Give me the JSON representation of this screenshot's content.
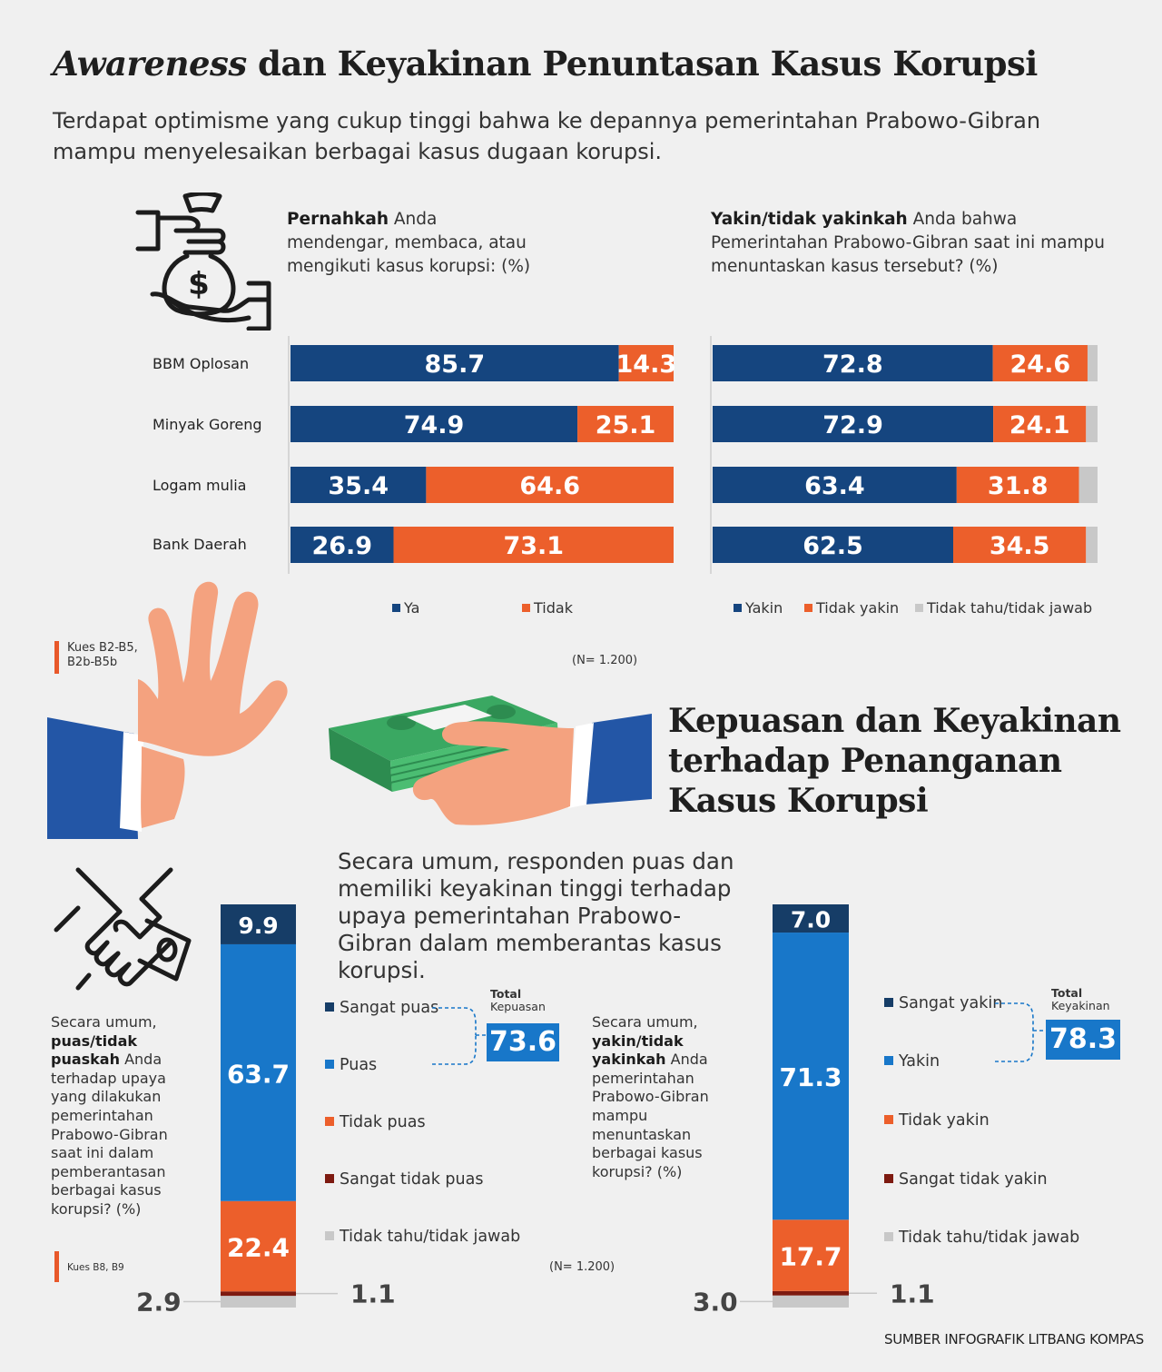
{
  "header": {
    "title_italic": "Awareness",
    "title_rest": " dan Keyakinan Penuntasan Kasus Korupsi",
    "subtitle": "Terdapat optimisme yang cukup tinggi bahwa ke depannya pemerintahan Prabowo-Gibran mampu menyelesaikan berbagai kasus dugaan korupsi."
  },
  "q_awareness": {
    "bold": "Pernahkah",
    "rest": " Anda mendengar, membaca, atau mengikuti kasus korupsi: (%)"
  },
  "q_confidence": {
    "bold": "Yakin/tidak yakinkah",
    "rest": " Anda bahwa Pemerintahan Prabowo-Gibran saat ini mampu menuntaskan kasus tersebut? (%)"
  },
  "categories": [
    "BBM Oplosan",
    "Minyak Goreng",
    "Logam mulia",
    "Bank Daerah"
  ],
  "legend1": {
    "ya": "Ya",
    "tidak": "Tidak"
  },
  "legend2": {
    "yakin": "Yakin",
    "tidak_yakin": "Tidak yakin",
    "tidak_tahu": "Tidak tahu/tidak jawab"
  },
  "note1": {
    "line1": "Kues B2-B5,",
    "line2": "B2b-B5b"
  },
  "n1": "(N= 1.200)",
  "section2": {
    "title": "Kepuasan dan Keyakinan terhadap Penanganan Kasus Korupsi",
    "subtitle": "Secara umum, responden puas dan memiliki keyakinan tinggi terhadap upaya pemerintahan Prabowo-Gibran dalam memberantas kasus korupsi."
  },
  "q_satisfaction": {
    "pre": "Secara umum, ",
    "bold": "puas/tidak puaskah",
    "rest": " Anda terhadap upaya yang dilakukan pemerintahan Prabowo-Gibran saat ini dalam pemberantasan berbagai kasus korupsi? (%)"
  },
  "q_belief": {
    "pre": "Secara umum, ",
    "bold": "yakin/tidak yakinkah",
    "rest": " Anda pemerintahan Prabowo-Gibran mampu menuntaskan berbagai kasus korupsi? (%)"
  },
  "legend3": [
    "Sangat puas",
    "Puas",
    "Tidak puas",
    "Sangat tidak puas",
    "Tidak tahu/tidak jawab"
  ],
  "legend4": [
    "Sangat yakin",
    "Yakin",
    "Tidak yakin",
    "Sangat tidak yakin",
    "Tidak tahu/tidak jawab"
  ],
  "total_puas": {
    "label": "Total",
    "sub": "Kepuasan",
    "value": "73.6"
  },
  "total_yakin": {
    "label": "Total",
    "sub": "Keyakinan",
    "value": "78.3"
  },
  "note2": "Kues B8, B9",
  "n2": "(N= 1.200)",
  "source": "SUMBER INFOGRAFIK LITBANG KOMPAS",
  "colors": {
    "blue_dark": "#15457f",
    "blue": "#1877c9",
    "navy": "#163d67",
    "orange": "#ec5f2b",
    "dark_red": "#7d1a10",
    "gray": "#c8c8c8"
  },
  "chart_data": [
    {
      "type": "bar",
      "orientation": "horizontal-stacked",
      "categories": [
        "BBM Oplosan",
        "Minyak Goreng",
        "Logam mulia",
        "Bank Daerah"
      ],
      "series": [
        {
          "name": "Ya",
          "values": [
            85.7,
            74.9,
            35.4,
            26.9
          ]
        },
        {
          "name": "Tidak",
          "values": [
            14.3,
            25.1,
            64.6,
            73.1
          ]
        }
      ]
    },
    {
      "type": "bar",
      "orientation": "horizontal-stacked",
      "categories": [
        "BBM Oplosan",
        "Minyak Goreng",
        "Logam mulia",
        "Bank Daerah"
      ],
      "series": [
        {
          "name": "Yakin",
          "values": [
            72.8,
            72.9,
            63.4,
            62.5
          ]
        },
        {
          "name": "Tidak yakin",
          "values": [
            24.6,
            24.1,
            31.8,
            34.5
          ]
        },
        {
          "name": "Tidak tahu/tidak jawab",
          "values": [
            2.6,
            3.0,
            4.8,
            3.0
          ]
        }
      ]
    },
    {
      "type": "bar",
      "orientation": "vertical-stacked",
      "series": [
        {
          "name": "Sangat puas",
          "value": 9.9
        },
        {
          "name": "Puas",
          "value": 63.7
        },
        {
          "name": "Tidak puas",
          "value": 22.4
        },
        {
          "name": "Sangat tidak puas",
          "value": 1.1
        },
        {
          "name": "Tidak tahu/tidak jawab",
          "value": 2.9
        }
      ]
    },
    {
      "type": "bar",
      "orientation": "vertical-stacked",
      "series": [
        {
          "name": "Sangat yakin",
          "value": 7.0
        },
        {
          "name": "Yakin",
          "value": 71.3
        },
        {
          "name": "Tidak yakin",
          "value": 17.7
        },
        {
          "name": "Sangat tidak yakin",
          "value": 1.1
        },
        {
          "name": "Tidak tahu/tidak jawab",
          "value": 3.0
        }
      ]
    }
  ]
}
